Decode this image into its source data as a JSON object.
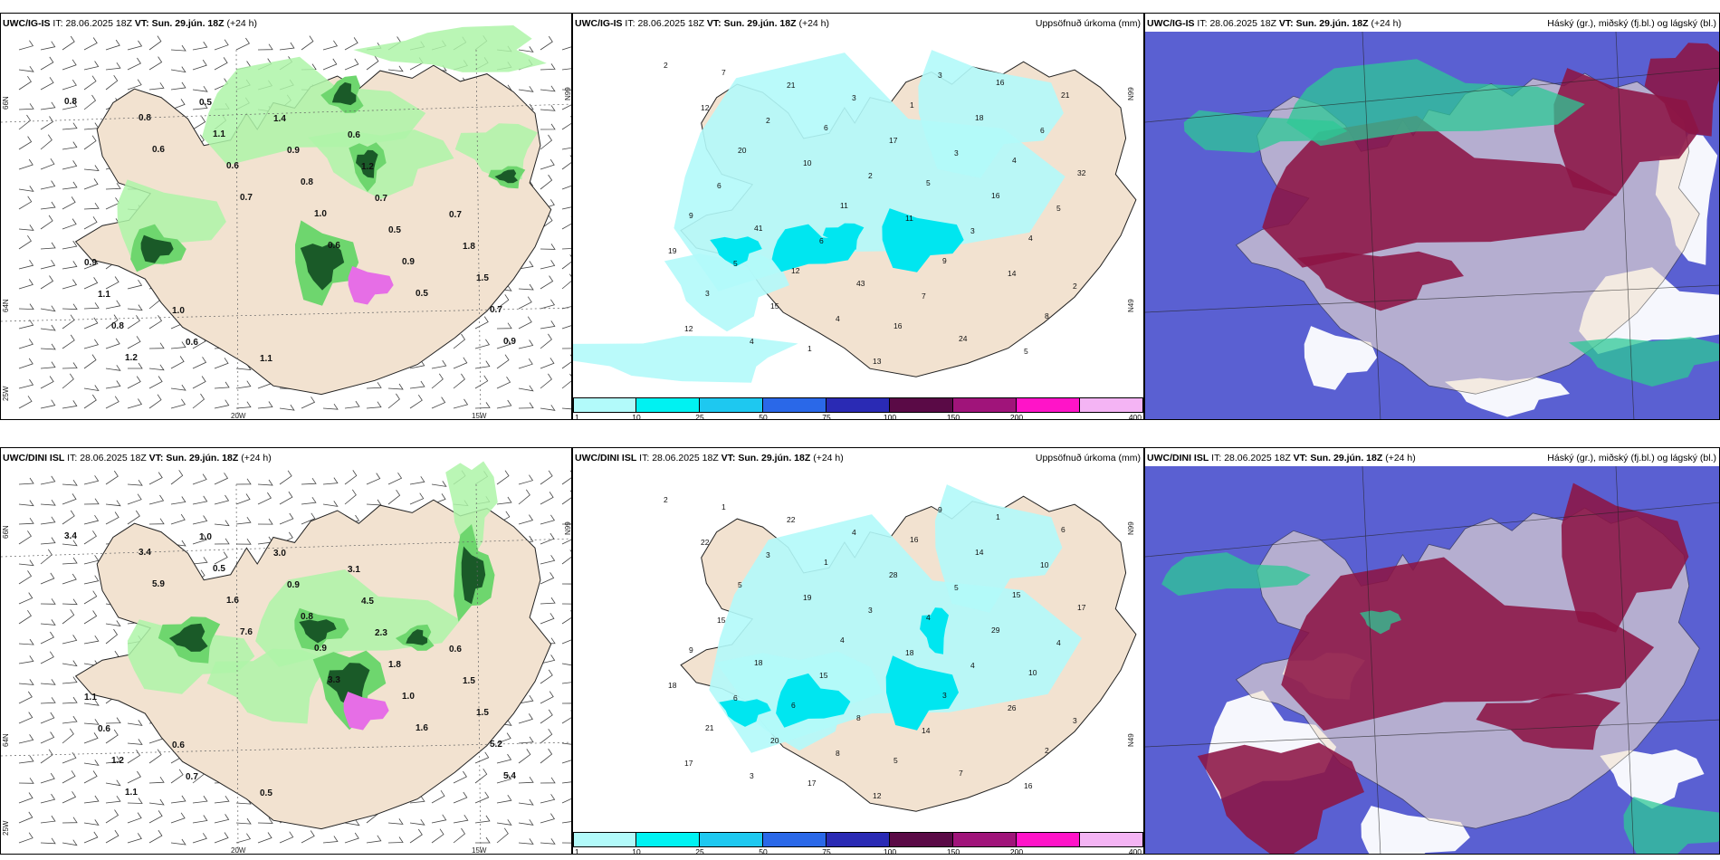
{
  "top": {
    "wind": {
      "model": "UWC/IG-IS",
      "it_label": "IT:",
      "it_value": "28.06.2025 18Z",
      "vt_label": "VT:",
      "vt_value": "Sun. 29.jún. 18Z",
      "lead": "(+24 h)",
      "lat_labels": [
        "66N",
        "64N",
        "25W"
      ],
      "lon_labels": [
        "20W",
        "15W"
      ],
      "right_label": "N99",
      "values": [
        "0.8",
        "0.6",
        "0.7",
        "0.6",
        "0.5",
        "0.9",
        "0.8",
        "0.6",
        "1.0",
        "0.9",
        "0.7",
        "1.2",
        "1.1",
        "0.8",
        "0.5",
        "1.5",
        "0.8",
        "0.5",
        "0.9",
        "0.7",
        "1.8",
        "1.1",
        "0.6",
        "1.4",
        "1.2",
        "0.7",
        "0.9",
        "1.0",
        "1.1",
        "0.6"
      ]
    },
    "precip": {
      "model": "UWC/IG-IS",
      "it_label": "IT:",
      "it_value": "28.06.2025 18Z",
      "vt_label": "VT:",
      "vt_value": "Sun. 29.jún. 18Z",
      "lead": "(+24 h)",
      "quantity": "Uppsöfnuð úrkoma (mm)",
      "lat_labels": [
        "N99",
        "N49"
      ],
      "values": [
        "2",
        "2",
        "2",
        "3",
        "2",
        "4",
        "3",
        "3",
        "5",
        "5",
        "4",
        "3",
        "6",
        "6",
        "6",
        "7",
        "5",
        "12",
        "10",
        "11",
        "14",
        "12",
        "21",
        "17",
        "16",
        "19",
        "15",
        "13",
        "18",
        "32",
        "41",
        "43",
        "24",
        "21",
        "20",
        "11",
        "9",
        "8",
        "7",
        "6",
        "5",
        "4",
        "3",
        "1",
        "1",
        "4",
        "9",
        "12",
        "16",
        "16"
      ]
    },
    "clouds": {
      "model": "UWC/IG-IS",
      "it_label": "IT:",
      "it_value": "28.06.2025 18Z",
      "vt_label": "VT:",
      "vt_value": "Sun. 29.jún. 18Z",
      "lead": "(+24 h)",
      "quantity": "Háský (gr.), miðský (fj.bl.) og lágský (bl.)"
    }
  },
  "bottom": {
    "wind": {
      "model": "UWC/DINI ISL",
      "it_label": "IT:",
      "it_value": "28.06.2025 18Z",
      "vt_label": "VT:",
      "vt_value": "Sun. 29.jún. 18Z",
      "lead": "(+24 h)",
      "lat_labels": [
        "66N",
        "64N",
        "25W"
      ],
      "lon_labels": [
        "20W",
        "15W"
      ],
      "right_label": "N99",
      "values": [
        "3.4",
        "5.9",
        "7.6",
        "3.3",
        "1.6",
        "5.4",
        "3.4",
        "1.6",
        "0.9",
        "1.0",
        "5.2",
        "1.1",
        "0.5",
        "0.8",
        "1.8",
        "1.5",
        "1.2",
        "1.0",
        "0.9",
        "2.3",
        "1.5",
        "0.6",
        "0.7",
        "3.0",
        "4.5",
        "0.6",
        "1.1",
        "0.6",
        "0.5",
        "3.1"
      ]
    },
    "precip": {
      "model": "UWC/DINI ISL",
      "it_label": "IT:",
      "it_value": "28.06.2025 18Z",
      "vt_label": "VT:",
      "vt_value": "Sun. 29.jún. 18Z",
      "lead": "(+24 h)",
      "quantity": "Uppsöfnuð úrkoma (mm)",
      "lat_labels": [
        "N99",
        "N49"
      ],
      "values": [
        "2",
        "3",
        "3",
        "4",
        "3",
        "3",
        "4",
        "5",
        "4",
        "6",
        "8",
        "9",
        "10",
        "15",
        "15",
        "14",
        "16",
        "22",
        "19",
        "18",
        "26",
        "17",
        "22",
        "28",
        "29",
        "18",
        "20",
        "12",
        "14",
        "17",
        "18",
        "8",
        "7",
        "6",
        "5",
        "4",
        "3",
        "2",
        "1",
        "1",
        "4",
        "10",
        "21",
        "17",
        "16",
        "15",
        "9",
        "6",
        "5",
        "1"
      ]
    },
    "clouds": {
      "model": "UWC/DINI ISL",
      "it_label": "IT:",
      "it_value": "28.06.2025 18Z",
      "vt_label": "VT:",
      "vt_value": "Sun. 29.jún. 18Z",
      "lead": "(+24 h)",
      "quantity": "Háský (gr.), miðský (fj.bl.) og lágský (bl.)"
    }
  },
  "colorbar": {
    "ticks": [
      "1",
      "10",
      "25",
      "50",
      "75",
      "100",
      "150",
      "200",
      "400"
    ],
    "colors": [
      "#b2fafa",
      "#00f2f2",
      "#1ec8f0",
      "#2a68e8",
      "#2a2ab4",
      "#5a0a46",
      "#a0147a",
      "#ff14c8",
      "#f4b4f4"
    ]
  },
  "colors": {
    "land": "#f2e2d0",
    "sea": "#ffffff",
    "wind_light": "#aef5a8",
    "wind_mid": "#6ed66e",
    "wind_dark": "#1a5a28",
    "wind_purple": "#e66ee6",
    "precip_light": "#b2fafa",
    "precip_mid": "#00e6f0",
    "cloud_high": "#2ec896",
    "cloud_mid": "#8c1444",
    "cloud_low": "#5a60d2"
  }
}
